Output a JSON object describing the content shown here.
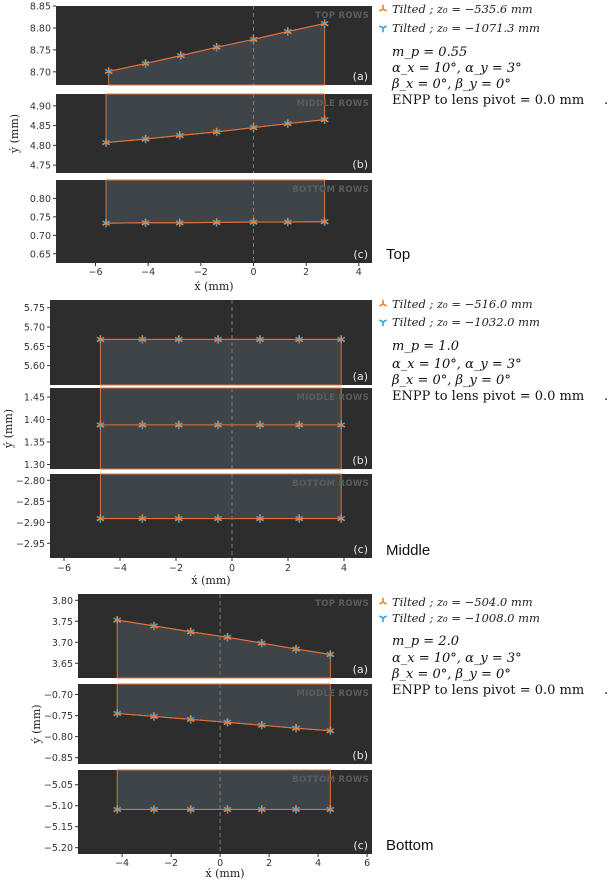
{
  "colors": {
    "panel_bg": "#2d2d2d",
    "polygon_fill": "#3f4448",
    "line": "#e0703a",
    "marker_orange": "#f0832e",
    "marker_blue": "#3aa0dc",
    "center_line": "#7a7a7a"
  },
  "chart_data": [
    {
      "type": "line",
      "group_label": "Top",
      "xlabel": "x́ (mm)",
      "ylabel": "ý (mm)",
      "xlim": [
        -7.5,
        4.5
      ],
      "xticks": [
        -6,
        -4,
        -2,
        0,
        2,
        4
      ],
      "xtick_labels": [
        "−6",
        "−4",
        "−2",
        "0",
        "2",
        "4"
      ],
      "center_line_x": 0,
      "legend": [
        {
          "label": "Tilted ; z₀ = −535.6 mm",
          "marker": "orange-tri"
        },
        {
          "label": "Tilted ; z₀ = −1071.3 mm",
          "marker": "blue-tri"
        }
      ],
      "params": [
        "m_p = 0.55",
        "α_x = 10°, α_y = 3°",
        "β_x = 0°, β_y = 0°",
        "ENPP to lens pivot = 0.0 mm",
        "."
      ],
      "panels": [
        {
          "tag": "(a)",
          "row_label": "TOP ROWS",
          "ylim": [
            8.67,
            8.85
          ],
          "yticks": [
            8.7,
            8.75,
            8.8,
            8.85
          ],
          "ytick_labels": [
            "8.70",
            "8.75",
            "8.80",
            "8.85"
          ],
          "x": [
            -5.5,
            -4.1,
            -2.76,
            -1.4,
            0,
            1.3,
            2.7
          ],
          "y": [
            8.701,
            8.719,
            8.737,
            8.756,
            8.774,
            8.792,
            8.81
          ],
          "poly_to": "bottom"
        },
        {
          "tag": "(b)",
          "row_label": "MIDDLE ROWS",
          "ylim": [
            4.73,
            4.93
          ],
          "yticks": [
            4.75,
            4.8,
            4.85,
            4.9
          ],
          "ytick_labels": [
            "4.75",
            "4.80",
            "4.85",
            "4.90"
          ],
          "x": [
            -5.6,
            -4.1,
            -2.8,
            -1.4,
            0,
            1.3,
            2.7
          ],
          "y": [
            4.807,
            4.816,
            4.825,
            4.834,
            4.845,
            4.855,
            4.865
          ],
          "poly_to": "top"
        },
        {
          "tag": "(c)",
          "row_label": "BOTTOM ROWS",
          "ylim": [
            0.625,
            0.85
          ],
          "yticks": [
            0.65,
            0.7,
            0.75,
            0.8
          ],
          "ytick_labels": [
            "0.65",
            "0.70",
            "0.75",
            "0.80"
          ],
          "x": [
            -5.6,
            -4.1,
            -2.8,
            -1.4,
            0,
            1.3,
            2.7
          ],
          "y": [
            0.733,
            0.734,
            0.734,
            0.735,
            0.736,
            0.736,
            0.737
          ],
          "poly_to": "top"
        }
      ]
    },
    {
      "type": "line",
      "group_label": "Middle",
      "xlabel": "x́ (mm)",
      "ylabel": "ý (mm)",
      "xlim": [
        -6.5,
        5.0
      ],
      "xticks": [
        -6,
        -4,
        -2,
        0,
        2,
        4
      ],
      "xtick_labels": [
        "−6",
        "−4",
        "−2",
        "0",
        "2",
        "4"
      ],
      "center_line_x": 0,
      "legend": [
        {
          "label": "Tilted ; z₀ = −516.0 mm",
          "marker": "orange-tri"
        },
        {
          "label": "Tilted ; z₀ = −1032.0 mm",
          "marker": "blue-tri"
        }
      ],
      "params": [
        "m_p = 1.0",
        "α_x = 10°, α_y = 3°",
        "β_x = 0°, β_y = 0°",
        "ENPP to lens pivot = 0.0 mm",
        "."
      ],
      "panels": [
        {
          "tag": "(a)",
          "row_label": "",
          "ylim": [
            5.55,
            5.77
          ],
          "yticks": [
            5.6,
            5.65,
            5.7,
            5.75
          ],
          "ytick_labels": [
            "5.60",
            "5.65",
            "5.70",
            "5.75"
          ],
          "x": [
            -4.7,
            -3.2,
            -1.9,
            -0.5,
            1.0,
            2.4,
            3.9
          ],
          "y": [
            5.668,
            5.668,
            5.668,
            5.668,
            5.668,
            5.668,
            5.668
          ],
          "poly_to": "bottom"
        },
        {
          "tag": "(b)",
          "row_label": "MIDDLE ROWS",
          "ylim": [
            1.29,
            1.47
          ],
          "yticks": [
            1.3,
            1.35,
            1.4,
            1.45
          ],
          "ytick_labels": [
            "1.30",
            "1.35",
            "1.40",
            "1.45"
          ],
          "x": [
            -4.7,
            -3.2,
            -1.9,
            -0.5,
            1.0,
            2.4,
            3.9
          ],
          "y": [
            1.388,
            1.388,
            1.388,
            1.388,
            1.388,
            1.388,
            1.388
          ],
          "poly_to": "both"
        },
        {
          "tag": "(c)",
          "row_label": "BOTTOM ROWS",
          "ylim": [
            -2.985,
            -2.785
          ],
          "yticks": [
            -2.95,
            -2.9,
            -2.85,
            -2.8
          ],
          "ytick_labels": [
            "−2.95",
            "−2.90",
            "−2.85",
            "−2.80"
          ],
          "x": [
            -4.7,
            -3.2,
            -1.9,
            -0.5,
            1.0,
            2.4,
            3.9
          ],
          "y": [
            -2.891,
            -2.891,
            -2.891,
            -2.891,
            -2.891,
            -2.891,
            -2.891
          ],
          "poly_to": "top"
        }
      ]
    },
    {
      "type": "line",
      "group_label": "Bottom",
      "xlabel": "x́ (mm)",
      "ylabel": "ý (mm)",
      "xlim": [
        -5.8,
        6.2
      ],
      "xticks": [
        -4,
        -2,
        0,
        2,
        4,
        6
      ],
      "xtick_labels": [
        "−4",
        "−2",
        "0",
        "2",
        "4",
        "6"
      ],
      "center_line_x": 0,
      "legend": [
        {
          "label": "Tilted ; z₀ = −504.0 mm",
          "marker": "orange-tri"
        },
        {
          "label": "Tilted ; z₀ = −1008.0 mm",
          "marker": "blue-tri"
        }
      ],
      "params": [
        "m_p = 2.0",
        "α_x = 10°, α_y = 3°",
        "β_x = 0°, β_y = 0°",
        "ENPP to lens pivot = 0.0 mm",
        "."
      ],
      "panels": [
        {
          "tag": "(a)",
          "row_label": "TOP ROWS",
          "ylim": [
            3.615,
            3.815
          ],
          "yticks": [
            3.65,
            3.7,
            3.75,
            3.8
          ],
          "ytick_labels": [
            "3.65",
            "3.70",
            "3.75",
            "3.80"
          ],
          "x": [
            -4.2,
            -2.7,
            -1.2,
            0.3,
            1.7,
            3.1,
            4.5
          ],
          "y": [
            3.753,
            3.739,
            3.725,
            3.712,
            3.698,
            3.684,
            3.671
          ],
          "poly_to": "bottom"
        },
        {
          "tag": "(b)",
          "row_label": "MIDDLE ROWS",
          "ylim": [
            -0.865,
            -0.675
          ],
          "yticks": [
            -0.85,
            -0.8,
            -0.75,
            -0.7
          ],
          "ytick_labels": [
            "−0.85",
            "−0.80",
            "−0.75",
            "−0.70"
          ],
          "x": [
            -4.2,
            -2.7,
            -1.2,
            0.3,
            1.7,
            3.1,
            4.5
          ],
          "y": [
            -0.745,
            -0.752,
            -0.759,
            -0.766,
            -0.773,
            -0.78,
            -0.786
          ],
          "poly_to": "top"
        },
        {
          "tag": "(c)",
          "row_label": "BOTTOM ROWS",
          "ylim": [
            -5.215,
            -5.015
          ],
          "yticks": [
            -5.2,
            -5.15,
            -5.1,
            -5.05
          ],
          "ytick_labels": [
            "−5.20",
            "−5.15",
            "−5.10",
            "−5.05"
          ],
          "x": [
            -4.2,
            -2.7,
            -1.2,
            0.3,
            1.7,
            3.1,
            4.5
          ],
          "y": [
            -5.109,
            -5.109,
            -5.109,
            -5.109,
            -5.109,
            -5.109,
            -5.109
          ],
          "poly_to": "top"
        }
      ]
    }
  ]
}
